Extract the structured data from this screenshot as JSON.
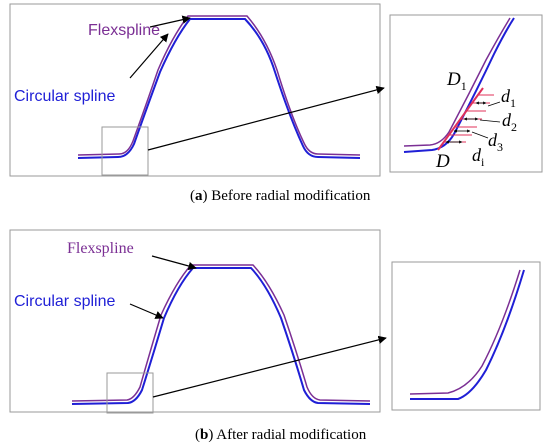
{
  "colors": {
    "flexspline": "#7b2f94",
    "circular": "#1f1fd6",
    "highlight": "#e0305a",
    "frame": "#9a9a9a",
    "arrow": "#000000",
    "text": "#000000"
  },
  "panel_a": {
    "flexspline_label": "Flexspline",
    "circular_label": "Circular spline",
    "caption_letter": "a",
    "caption_text": "Before radial modification",
    "detail": {
      "point_D1": "D",
      "point_D1_sub": "1",
      "point_D": "D",
      "d1": "d",
      "d1_sub": "1",
      "d2": "d",
      "d2_sub": "2",
      "d3": "d",
      "d3_sub": "3",
      "di": "d",
      "di_sub": "i"
    }
  },
  "panel_b": {
    "flexspline_label": "Flexspline",
    "circular_label": "Circular spline",
    "caption_letter": "b",
    "caption_text": "After radial modification"
  }
}
